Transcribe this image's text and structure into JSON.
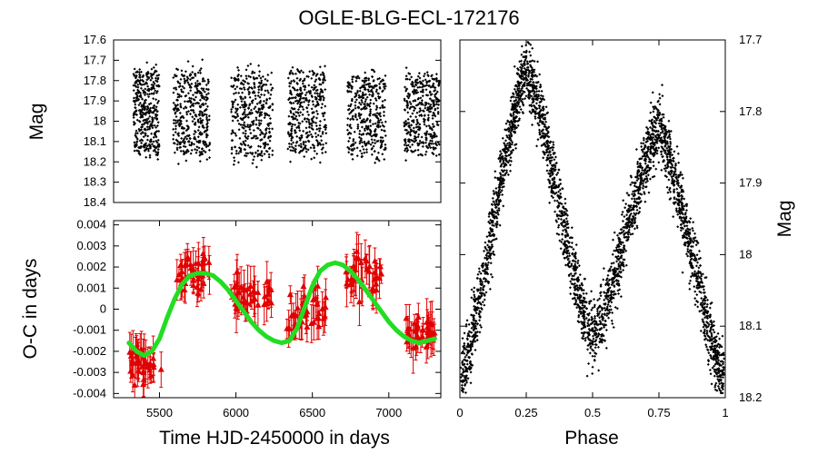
{
  "title": "OGLE-BLG-ECL-172176",
  "chart_data": [
    {
      "id": "lc",
      "type": "scatter",
      "title": "",
      "xlabel": "",
      "ylabel": "Mag",
      "xlim": [
        5200,
        7340
      ],
      "ylim": [
        18.4,
        17.6
      ],
      "y_inverted": true,
      "yticks": [
        "17.6",
        "17.7",
        "17.8",
        "17.9",
        "18",
        "18.1",
        "18.2",
        "18.3",
        "18.4"
      ],
      "xticks": [],
      "series": [
        {
          "name": "light curve",
          "color": "#000000",
          "marker": "diamond",
          "seasons": [
            {
              "start": 5330,
              "end": 5500,
              "mag_min": 17.72,
              "mag_max": 18.2
            },
            {
              "start": 5590,
              "end": 5830,
              "mag_min": 17.72,
              "mag_max": 18.2
            },
            {
              "start": 5970,
              "end": 6240,
              "mag_min": 17.72,
              "mag_max": 18.22
            },
            {
              "start": 6340,
              "end": 6590,
              "mag_min": 17.72,
              "mag_max": 18.2
            },
            {
              "start": 6730,
              "end": 6980,
              "mag_min": 17.74,
              "mag_max": 18.2
            },
            {
              "start": 7100,
              "end": 7330,
              "mag_min": 17.74,
              "mag_max": 18.18
            }
          ]
        }
      ]
    },
    {
      "id": "oc",
      "type": "scatter",
      "title": "",
      "xlabel": "Time HJD-2450000 in days",
      "ylabel": "O-C in days",
      "xlim": [
        5200,
        7340
      ],
      "ylim": [
        -0.0042,
        0.0042
      ],
      "xticks": [
        "5500",
        "6000",
        "6500",
        "7000"
      ],
      "yticks": [
        "0.004",
        "0.003",
        "0.002",
        "0.001",
        "0",
        "-0.001",
        "-0.002",
        "-0.003",
        "-0.004"
      ],
      "series": [
        {
          "name": "O-C timings",
          "color": "#e00000",
          "marker": "triangle",
          "error_bars": true,
          "clusters": [
            {
              "start": 5300,
              "end": 5520,
              "center": -0.0026,
              "spread": 0.0008
            },
            {
              "start": 5600,
              "end": 5830,
              "center": 0.0019,
              "spread": 0.0009
            },
            {
              "start": 5960,
              "end": 6240,
              "center": 0.0006,
              "spread": 0.0008
            },
            {
              "start": 6330,
              "end": 6590,
              "center": -0.0002,
              "spread": 0.0012
            },
            {
              "start": 6720,
              "end": 6960,
              "center": 0.0016,
              "spread": 0.0009
            },
            {
              "start": 7110,
              "end": 7300,
              "center": -0.0011,
              "spread": 0.0007
            }
          ]
        },
        {
          "name": "LTTE fit",
          "color": "#22dd22",
          "type": "line",
          "x": [
            5300,
            5350,
            5400,
            5450,
            5500,
            5550,
            5600,
            5650,
            5700,
            5750,
            5800,
            5850,
            5900,
            5950,
            6000,
            6050,
            6100,
            6150,
            6200,
            6250,
            6300,
            6350,
            6400,
            6450,
            6500,
            6550,
            6600,
            6650,
            6700,
            6750,
            6800,
            6850,
            6900,
            6950,
            7000,
            7050,
            7100,
            7150,
            7200,
            7250,
            7300
          ],
          "y": [
            -0.0016,
            -0.002,
            -0.0022,
            -0.002,
            -0.0014,
            -0.0004,
            0.0005,
            0.0012,
            0.0016,
            0.0017,
            0.0017,
            0.0016,
            0.0013,
            0.0009,
            0.0004,
            -0.0001,
            -0.0006,
            -0.001,
            -0.0013,
            -0.0015,
            -0.0016,
            -0.0015,
            -0.0009,
            0.0001,
            0.0011,
            0.0018,
            0.0021,
            0.0022,
            0.0021,
            0.0018,
            0.0014,
            0.0009,
            0.0004,
            -0.0001,
            -0.0006,
            -0.001,
            -0.0013,
            -0.0015,
            -0.0016,
            -0.0015,
            -0.0014
          ]
        }
      ]
    },
    {
      "id": "phase",
      "type": "scatter",
      "title": "",
      "xlabel": "Phase",
      "ylabel": "Mag",
      "xlim": [
        0,
        1
      ],
      "ylim": [
        18.2,
        17.7
      ],
      "y_inverted": true,
      "xticks": [
        "0",
        "0.25",
        "0.5",
        "0.75",
        "1"
      ],
      "yticks": [
        "17.7",
        "17.8",
        "17.9",
        "18",
        "18.1",
        "18.2"
      ],
      "series": [
        {
          "name": "phased light curve",
          "color": "#000000",
          "marker": "diamond",
          "shape": "double-wave",
          "maxima": [
            {
              "phase": 0.25,
              "mag": 17.74
            },
            {
              "phase": 0.75,
              "mag": 17.82
            }
          ],
          "minima": [
            {
              "phase": 0.0,
              "mag": 18.18
            },
            {
              "phase": 0.5,
              "mag": 18.12
            },
            {
              "phase": 1.0,
              "mag": 18.18
            }
          ],
          "scatter_mag": 0.05
        }
      ]
    }
  ]
}
